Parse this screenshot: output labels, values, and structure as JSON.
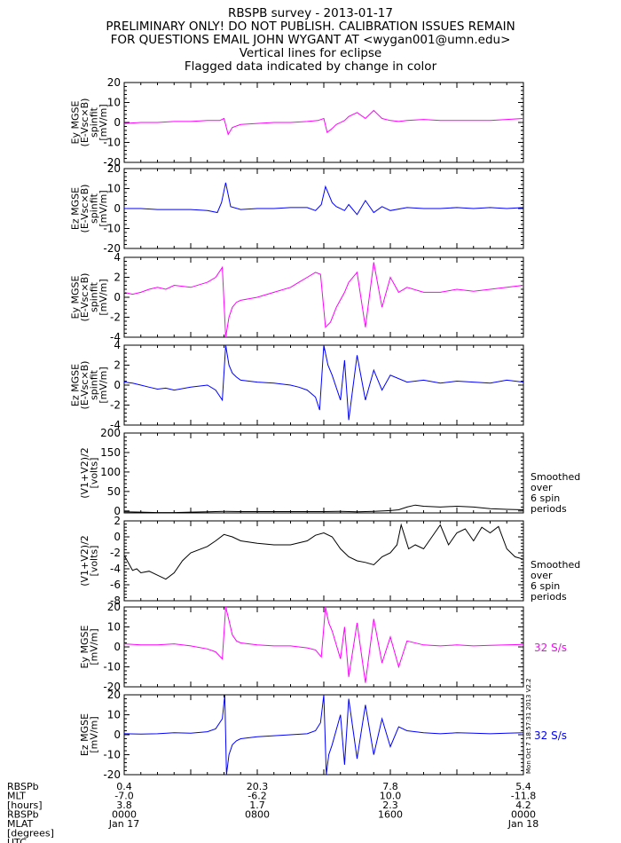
{
  "header": {
    "line1": "RBSPB survey - 2013-01-17",
    "line2": "PRELIMINARY ONLY! DO NOT PUBLISH. CALIBRATION ISSUES REMAIN",
    "line3": "FOR QUESTIONS EMAIL JOHN WYGANT AT <wygan001@umn.edu>",
    "line4": "Vertical lines for eclipse",
    "line5": "Flagged data indicated by change in color"
  },
  "chart_data": [
    {
      "type": "line",
      "ylabel_lines": [
        "Ey MGSE",
        "(E-Vsc×B)",
        "spinfit",
        "[mV/m]"
      ],
      "ylim": [
        -20,
        20
      ],
      "yticks": [
        "20",
        "10",
        "0",
        "-10",
        "-20"
      ],
      "color": "#ff00ff",
      "series": [
        {
          "x": [
            0,
            2,
            4,
            6,
            8,
            10,
            11.5,
            12.0,
            12.5,
            13,
            14,
            16,
            18,
            20,
            22,
            23.3,
            24,
            24.4,
            25,
            25.5,
            26.5,
            27,
            28,
            29,
            30,
            31,
            32,
            33,
            34,
            36,
            38,
            40,
            42,
            44,
            46,
            48
          ],
          "y": [
            -0.5,
            0,
            0,
            0.5,
            0.5,
            1,
            1,
            2.0,
            -6.0,
            -2.5,
            -1,
            -0.5,
            0,
            0,
            0.5,
            1.0,
            2.0,
            -5.0,
            -3,
            -1,
            1,
            3,
            5,
            2,
            6,
            2,
            1,
            0.5,
            1,
            1.5,
            1,
            1,
            1,
            1,
            1.5,
            2
          ]
        }
      ],
      "right_label": ""
    },
    {
      "type": "line",
      "ylabel_lines": [
        "Ez MGSE",
        "(E-Vsc×B)",
        "spinfit",
        "[mV/m]"
      ],
      "ylim": [
        -20,
        20
      ],
      "yticks": [
        "20",
        "10",
        "0",
        "-10",
        "-20"
      ],
      "color": "#0000ff",
      "series": [
        {
          "x": [
            0,
            2,
            4,
            6,
            8,
            10,
            11.2,
            11.7,
            12.2,
            12.8,
            14,
            16,
            18,
            20,
            22,
            23.0,
            23.7,
            24.2,
            25,
            25.5,
            26.5,
            27,
            28,
            29,
            30,
            31,
            32,
            34,
            36,
            38,
            40,
            42,
            44,
            46,
            48
          ],
          "y": [
            0,
            0,
            -0.5,
            -0.5,
            -0.5,
            -1,
            -2,
            3,
            13,
            1,
            -0.5,
            0,
            0,
            0.5,
            0.5,
            -1,
            2,
            11,
            3,
            1,
            -1,
            2,
            -3,
            4,
            -2,
            1,
            -1,
            0.5,
            0,
            0,
            0.5,
            0,
            0.5,
            0,
            0.5
          ]
        }
      ],
      "right_label": ""
    },
    {
      "type": "line",
      "ylabel_lines": [
        "Ey MGSE",
        "(E-Vsc×B)",
        "spinfit",
        "[mV/m]"
      ],
      "ylim": [
        -4,
        4
      ],
      "yticks": [
        "4",
        "2",
        "0",
        "-2",
        "-4"
      ],
      "color": "#ff00ff",
      "series": [
        {
          "x": [
            0,
            1,
            2,
            3,
            4,
            5,
            6,
            8,
            10,
            11,
            11.8,
            12.2,
            12.6,
            13.0,
            13.5,
            14,
            16,
            18,
            20,
            21,
            22,
            23,
            23.6,
            24.2,
            24.8,
            25.5,
            26.5,
            27,
            28,
            29,
            30,
            31,
            32,
            33,
            34,
            36,
            38,
            40,
            42,
            44,
            46,
            48
          ],
          "y": [
            0.5,
            0.3,
            0.5,
            0.8,
            1.0,
            0.8,
            1.2,
            1.0,
            1.5,
            2.0,
            3.0,
            -4.0,
            -2.0,
            -1.0,
            -0.5,
            -0.3,
            0.0,
            0.5,
            1.0,
            1.5,
            2.0,
            2.5,
            2.3,
            -3.0,
            -2.5,
            -1.0,
            0.5,
            1.5,
            2.5,
            -3.0,
            3.5,
            -1.0,
            2.0,
            0.5,
            1.0,
            0.5,
            0.5,
            0.8,
            0.6,
            0.8,
            1.0,
            1.2
          ]
        }
      ],
      "right_label": ""
    },
    {
      "type": "line",
      "ylabel_lines": [
        "Ez MGSE",
        "(E-Vsc×B)",
        "spinfit",
        "[mV/m]"
      ],
      "ylim": [
        -4,
        4
      ],
      "yticks": [
        "4",
        "2",
        "0",
        "-2",
        "-4"
      ],
      "color": "#0000ff",
      "series": [
        {
          "x": [
            0,
            1,
            2,
            3,
            4,
            5,
            6,
            8,
            10,
            11,
            11.8,
            12.2,
            12.6,
            13.0,
            13.5,
            14,
            16,
            18,
            20,
            21,
            22,
            23,
            23.5,
            24.0,
            24.5,
            25,
            26,
            26.5,
            27,
            28,
            29,
            30,
            31,
            32,
            34,
            36,
            38,
            40,
            42,
            44,
            46,
            48
          ],
          "y": [
            0.3,
            0.2,
            0.0,
            -0.2,
            -0.4,
            -0.3,
            -0.5,
            -0.2,
            0.0,
            -0.5,
            -1.5,
            4.0,
            2.0,
            1.2,
            0.8,
            0.5,
            0.3,
            0.2,
            0.0,
            -0.2,
            -0.5,
            -1.2,
            -2.5,
            4.0,
            2.0,
            1.0,
            -1.5,
            2.5,
            -3.5,
            3.0,
            -1.5,
            1.5,
            -0.5,
            1.0,
            0.3,
            0.5,
            0.2,
            0.4,
            0.3,
            0.2,
            0.5,
            0.3
          ]
        }
      ],
      "right_label": ""
    },
    {
      "type": "line",
      "ylabel_lines": [
        "(V1+V2)/2",
        "[volts]"
      ],
      "ylim": [
        -5,
        200
      ],
      "yticks": [
        "200",
        "150",
        "100",
        "50",
        "0"
      ],
      "color": "#000000",
      "series": [
        {
          "x": [
            0,
            2,
            4,
            6,
            8,
            10,
            12,
            14,
            16,
            18,
            20,
            22,
            24,
            26,
            28,
            30,
            32,
            33,
            34,
            35,
            36,
            38,
            40,
            42,
            44,
            46,
            48
          ],
          "y": [
            -2,
            -3,
            -4,
            -4,
            -3,
            -2,
            -1,
            -1.5,
            -1.5,
            -1.5,
            -1.5,
            -1.5,
            -1.5,
            -1,
            -2,
            -1,
            1,
            3,
            10,
            15,
            12,
            10,
            12,
            10,
            6,
            4,
            3
          ]
        }
      ],
      "right_label": "Smoothed over 6 spin periods"
    },
    {
      "type": "line",
      "ylabel_lines": [
        "(V1+V2)/2",
        "[volts]"
      ],
      "ylim": [
        -8,
        2
      ],
      "yticks": [
        "2",
        "0",
        "-2",
        "-4",
        "-6",
        "-8"
      ],
      "color": "#000000",
      "series": [
        {
          "x": [
            0,
            1,
            1.5,
            2,
            3,
            4,
            5,
            6,
            7,
            8,
            10,
            11,
            12,
            13,
            14,
            16,
            18,
            20,
            22,
            23,
            24,
            25,
            26,
            27,
            28,
            29,
            30,
            31,
            32,
            32.8,
            33.3,
            34.2,
            35,
            36,
            37,
            38,
            39,
            40,
            41,
            42,
            43,
            44,
            45,
            46,
            47,
            48
          ],
          "y": [
            -2.3,
            -4.2,
            -4.0,
            -4.5,
            -4.3,
            -4.8,
            -5.3,
            -4.5,
            -3.0,
            -2.0,
            -1.2,
            -0.5,
            0.3,
            0.0,
            -0.5,
            -0.8,
            -1.0,
            -1.0,
            -0.5,
            0.2,
            0.5,
            0.0,
            -1.5,
            -2.5,
            -3.0,
            -3.2,
            -3.5,
            -2.5,
            -2.0,
            -1.0,
            1.5,
            -1.5,
            -1.0,
            -1.5,
            0.0,
            1.5,
            -1.0,
            0.5,
            1.0,
            -0.5,
            1.2,
            0.5,
            1.3,
            -1.5,
            -2.5,
            -2.8
          ]
        }
      ],
      "right_label": "Smoothed over 6 spin periods"
    },
    {
      "type": "line",
      "ylabel_lines": [
        "Ey MGSE",
        "[mV/m]"
      ],
      "ylim": [
        -20,
        20
      ],
      "yticks": [
        "20",
        "10",
        "0",
        "-10",
        "-20"
      ],
      "color": "#ff00ff",
      "series": [
        {
          "x": [
            0,
            2,
            4,
            6,
            8,
            10,
            11,
            11.8,
            12.2,
            12.5,
            13,
            13.5,
            14,
            16,
            18,
            20,
            22,
            23,
            23.7,
            24.2,
            24.6,
            25,
            26,
            26.5,
            27,
            28,
            29,
            30,
            31,
            32,
            33,
            34,
            36,
            38,
            40,
            42,
            44,
            46,
            48
          ],
          "y": [
            1.5,
            1.0,
            1.0,
            1.5,
            0.5,
            -1.0,
            -2.5,
            -6.0,
            20,
            15,
            6,
            3,
            2,
            1,
            0.5,
            0.5,
            -0.5,
            -1.5,
            -5.0,
            20,
            12,
            8,
            -6,
            10,
            -15,
            12,
            -18,
            14,
            -8,
            5,
            -10,
            3,
            1,
            0.5,
            1,
            0.5,
            0.8,
            1,
            1.2
          ]
        }
      ],
      "right_label": "32 S/s"
    },
    {
      "type": "line",
      "ylabel_lines": [
        "Ez MGSE",
        "[mV/m]"
      ],
      "ylim": [
        -20,
        20
      ],
      "yticks": [
        "20",
        "10",
        "0",
        "-10",
        "-20"
      ],
      "color": "#0000ff",
      "series": [
        {
          "x": [
            0,
            2,
            4,
            6,
            8,
            10,
            11,
            11.8,
            12.1,
            12.3,
            12.6,
            13,
            13.5,
            14,
            16,
            18,
            20,
            22,
            23,
            23.6,
            24.0,
            24.3,
            24.6,
            25,
            26,
            26.5,
            27,
            28,
            29,
            30,
            31,
            32,
            33,
            34,
            36,
            38,
            40,
            42,
            44,
            46,
            48
          ],
          "y": [
            0.5,
            0.3,
            0.5,
            1.0,
            0.8,
            1.5,
            3.0,
            8.0,
            20,
            -20,
            -10,
            -5,
            -3,
            -2,
            -1,
            -0.5,
            0,
            0.5,
            2.0,
            6.0,
            20,
            -20,
            -10,
            -5,
            10,
            -15,
            18,
            -12,
            15,
            -10,
            8,
            -6,
            4,
            2,
            1,
            0.5,
            1,
            0.8,
            0.5,
            0.8,
            1
          ]
        }
      ],
      "right_label": "32 S/s"
    }
  ],
  "xaxis": {
    "row_labels": [
      "RBSPb",
      "MLT",
      "[hours]",
      "RBSPb",
      "MLAT",
      "[degrees]",
      "UTC"
    ],
    "ticks": [
      {
        "mlt": "0.4",
        "mlat": "-7.0",
        "hours": "3.8",
        "utc": "0000",
        "date": "Jan 17"
      },
      {
        "mlt": "20.3",
        "mlat": "-6.2",
        "hours": "1.7",
        "utc": "0800",
        "date": ""
      },
      {
        "mlt": "7.8",
        "mlat": "10.0",
        "hours": "2.3",
        "utc": "1600",
        "date": ""
      },
      {
        "mlt": "5.4",
        "mlat": "-11.8",
        "hours": "4.2",
        "utc": "0000",
        "date": "Jan 18"
      }
    ]
  },
  "side_stamp": "Mon Oct 7 18:57:31 2013 V2.2",
  "colors": {
    "magenta": "#ff00ff",
    "blue": "#0000ff",
    "black": "#000000"
  }
}
